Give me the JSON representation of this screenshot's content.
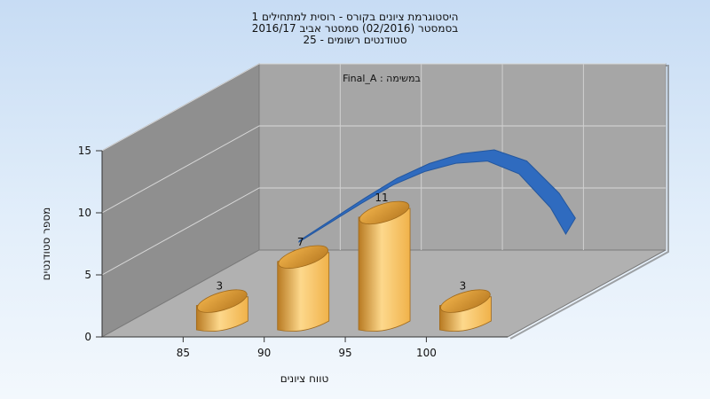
{
  "chart_data": {
    "type": "bar",
    "title_lines": [
      "היסטוגרמת ציונים בקורס - רוסית למתחילים 1",
      "בסמסטר  (02/2016)  סמסטר אביב 2016/17",
      "סטודנטים רשומים - 25"
    ],
    "xlabel": "טווח ציונים",
    "ylabel": "מספר סטודנטים",
    "series_label": "במשימה : Final_A",
    "categories": [
      "85",
      "90",
      "95",
      "100"
    ],
    "values": [
      3,
      7,
      11,
      3
    ],
    "data_labels": [
      "3",
      "7",
      "11",
      "3"
    ],
    "y_ticks": [
      "0",
      "5",
      "10",
      "15"
    ],
    "ylim": [
      0,
      15
    ],
    "curve_x": [
      90,
      92,
      94,
      96,
      98,
      100,
      102,
      104,
      106,
      107
    ],
    "curve_y": [
      6.2,
      7.9,
      9.6,
      11.2,
      12.4,
      13.2,
      13.5,
      12.6,
      10.0,
      8.0
    ],
    "colors": {
      "bar_light": "#fdd88c",
      "bar_mid": "#f0b24a",
      "bar_dark": "#b87a22",
      "curve": "#2f6bbf",
      "floor": "#b1b1b1",
      "back_wall": "#a6a6a6",
      "side_wall": "#8f8f8f"
    }
  }
}
